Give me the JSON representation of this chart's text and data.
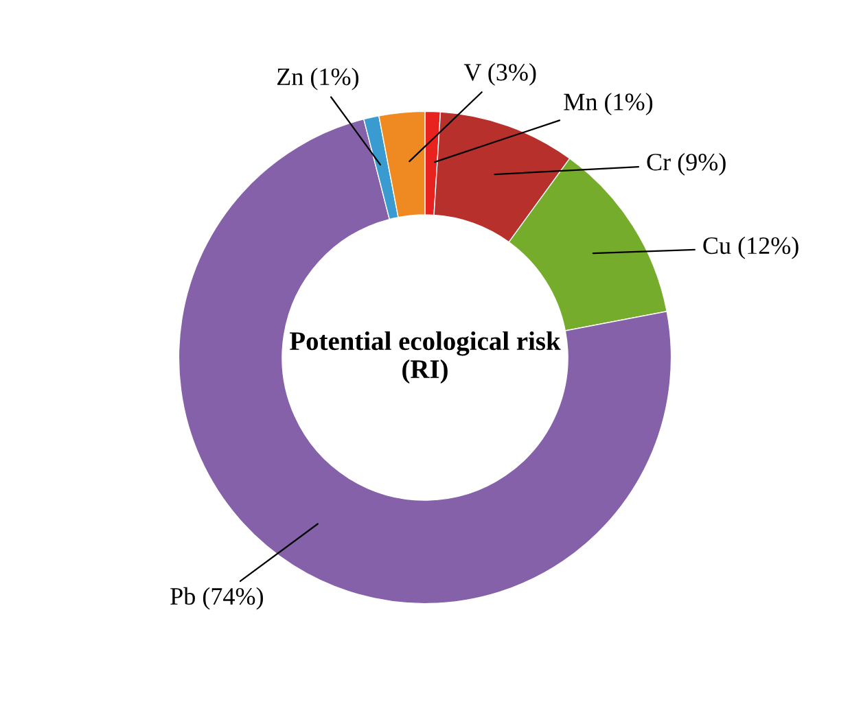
{
  "chart_data": {
    "type": "donut",
    "title": "Potential ecological risk\n(RI)",
    "categories": [
      "Mn (1%)",
      "Cr (9%)",
      "Cu (12%)",
      "Pb (74%)",
      "Zn (1%)",
      "V (3%)"
    ],
    "values": [
      1,
      9,
      12,
      74,
      1,
      3
    ],
    "colors": [
      "#e8231f",
      "#b8302c",
      "#76ac2c",
      "#8461a8",
      "#3a9bd0",
      "#ef8a22"
    ],
    "legend": false
  }
}
